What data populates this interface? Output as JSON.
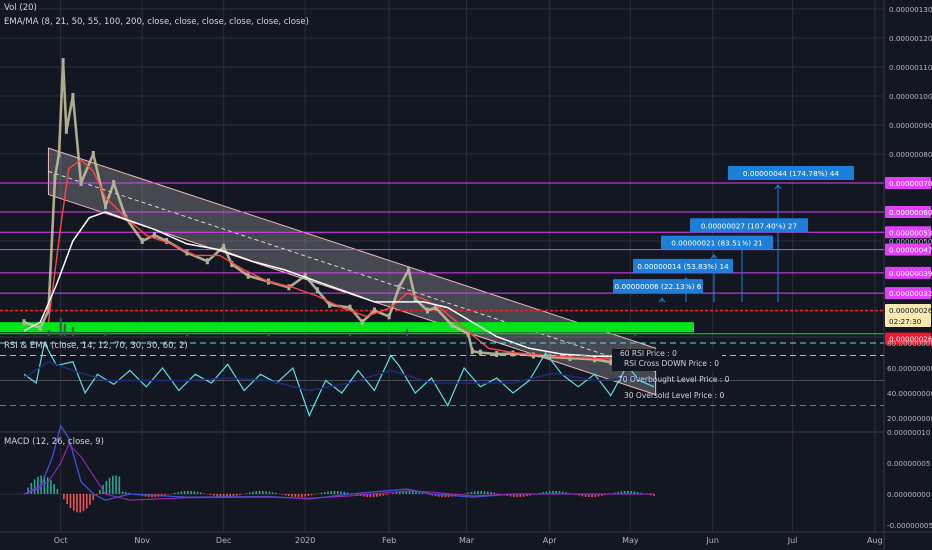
{
  "legend": {
    "vol": "Vol (20)",
    "ema": "EMA/MA (8, 21, 50, 55, 100, 200, close, close, close, close, close, close)",
    "rsi": "RSI & EMA (close, 14, 12, 70, 30, 50, 60, 2)",
    "macd": "MACD (12, 26, close, 9)"
  },
  "xaxis": {
    "labels": [
      {
        "t": 0.45,
        "text": "Oct"
      },
      {
        "t": 1.45,
        "text": "Nov"
      },
      {
        "t": 2.45,
        "text": "Dec"
      },
      {
        "t": 3.45,
        "text": "2020"
      },
      {
        "t": 4.48,
        "text": "Feb"
      },
      {
        "t": 5.43,
        "text": "Mar"
      },
      {
        "t": 6.45,
        "text": "Apr"
      },
      {
        "t": 7.44,
        "text": "May"
      },
      {
        "t": 8.45,
        "text": "Jun"
      },
      {
        "t": 9.43,
        "text": "Jul"
      },
      {
        "t": 10.44,
        "text": "Aug"
      }
    ]
  },
  "price_axis": {
    "ticks": [
      {
        "v": 130,
        "text": "0.00000130"
      },
      {
        "v": 120,
        "text": "0.00000120"
      },
      {
        "v": 110,
        "text": "0.00000110"
      },
      {
        "v": 100,
        "text": "0.00000100"
      },
      {
        "v": 90,
        "text": "0.00000090"
      },
      {
        "v": 80,
        "text": "0.00000080"
      },
      {
        "v": 50,
        "text": "0.00000050"
      }
    ],
    "badges": [
      {
        "v": 70,
        "text": "0.00000070",
        "color": "#e040fb",
        "fg": "#ffffff"
      },
      {
        "v": 60,
        "text": "0.00000060",
        "color": "#e040fb",
        "fg": "#ffffff"
      },
      {
        "v": 53,
        "text": "0.00000053",
        "color": "#e040fb",
        "fg": "#ffffff"
      },
      {
        "v": 47,
        "text": "0.00000047",
        "color": "#e040fb",
        "fg": "#ffffff"
      },
      {
        "v": 39,
        "text": "0.00000039",
        "color": "#e040fb",
        "fg": "#ffffff"
      },
      {
        "v": 32,
        "text": "0.00000032",
        "color": "#e040fb",
        "fg": "#ffffff"
      },
      {
        "v": 26.2,
        "text": "0.00000026",
        "color": "#f7e9b0",
        "fg": "#131722"
      },
      {
        "v": 22.4,
        "text": "02:27:30",
        "color": "#f7e9b0",
        "fg": "#131722"
      },
      {
        "v": 16.3,
        "text": "0.00000026",
        "color": "#f0162b",
        "fg": "#ffffff"
      }
    ]
  },
  "rsi_axis": {
    "ticks": [
      {
        "v": 80,
        "text": "80.00000000"
      },
      {
        "v": 60,
        "text": "60.00000000"
      },
      {
        "v": 40,
        "text": "40.00000000"
      },
      {
        "v": 20,
        "text": "20.00000000"
      }
    ],
    "info": [
      "60 RSI Price : 0",
      "RSI Cross DOWN Price : 0",
      "70 Overbought Level Price : 0",
      "30 Oversold Level Price : 0"
    ]
  },
  "macd_axis": {
    "ticks": [
      {
        "v": 10,
        "text": "0.00000010"
      },
      {
        "v": 5,
        "text": "0.00000005"
      },
      {
        "v": 0,
        "text": "0.00000000"
      },
      {
        "v": -5,
        "text": "-0.00000005"
      }
    ]
  },
  "targets": [
    {
      "v": 32,
      "text": "0.00000006 (22.13%) 6"
    },
    {
      "v": 39,
      "text": "0.00000014 (53.83%) 14"
    },
    {
      "v": 47,
      "text": "0.00000021 (83.51%) 21"
    },
    {
      "v": 53,
      "text": "0.00000027 (107.40%) 27"
    },
    {
      "v": 71,
      "text": "0.00000044 (174.78%) 44"
    }
  ],
  "levels": [
    {
      "v": 70,
      "color": "#e040fb"
    },
    {
      "v": 60,
      "color": "#e040fb"
    },
    {
      "v": 53,
      "color": "#e040fb"
    },
    {
      "v": 47,
      "color": "#e040fb"
    },
    {
      "v": 39,
      "color": "#e040fb"
    },
    {
      "v": 32,
      "color": "#e040fb"
    },
    {
      "v": 26,
      "color": "#ff1a1a"
    }
  ],
  "chart_data": {
    "type": "line",
    "title": "",
    "x_unit": "months since Sep 2019 (axis month labels)",
    "price_series": [
      [
        0.0,
        22
      ],
      [
        0.2,
        20
      ],
      [
        0.3,
        26
      ],
      [
        0.38,
        72
      ],
      [
        0.43,
        80
      ],
      [
        0.48,
        112
      ],
      [
        0.52,
        88
      ],
      [
        0.6,
        100
      ],
      [
        0.7,
        70
      ],
      [
        0.85,
        80
      ],
      [
        1.0,
        62
      ],
      [
        1.1,
        70
      ],
      [
        1.25,
        58
      ],
      [
        1.45,
        50
      ],
      [
        1.6,
        52
      ],
      [
        1.75,
        50
      ],
      [
        2.0,
        46
      ],
      [
        2.25,
        43
      ],
      [
        2.45,
        48
      ],
      [
        2.55,
        42
      ],
      [
        2.75,
        38
      ],
      [
        3.0,
        36
      ],
      [
        3.25,
        34
      ],
      [
        3.45,
        38
      ],
      [
        3.6,
        33
      ],
      [
        3.75,
        28
      ],
      [
        4.0,
        27
      ],
      [
        4.15,
        22
      ],
      [
        4.3,
        26
      ],
      [
        4.48,
        24
      ],
      [
        4.6,
        34
      ],
      [
        4.72,
        40
      ],
      [
        4.8,
        30
      ],
      [
        4.95,
        26
      ],
      [
        5.05,
        27
      ],
      [
        5.25,
        21
      ],
      [
        5.45,
        18
      ],
      [
        5.5,
        12
      ],
      [
        5.6,
        11.5
      ],
      [
        5.8,
        11
      ],
      [
        6.0,
        11.2
      ],
      [
        6.25,
        10.5
      ],
      [
        6.45,
        10
      ],
      [
        6.7,
        9.6
      ],
      [
        7.0,
        9.2
      ],
      [
        7.2,
        8.2
      ],
      [
        7.44,
        9.4
      ],
      [
        7.6,
        9.5
      ],
      [
        7.73,
        9.2
      ]
    ],
    "ema_red": [
      [
        0.3,
        22
      ],
      [
        0.45,
        55
      ],
      [
        0.55,
        75
      ],
      [
        0.7,
        78
      ],
      [
        0.85,
        74
      ],
      [
        1.0,
        65
      ],
      [
        1.25,
        58
      ],
      [
        1.5,
        52
      ],
      [
        1.8,
        49
      ],
      [
        2.1,
        45
      ],
      [
        2.4,
        45
      ],
      [
        2.7,
        40
      ],
      [
        3.0,
        36
      ],
      [
        3.3,
        34
      ],
      [
        3.6,
        31
      ],
      [
        3.9,
        27
      ],
      [
        4.2,
        24
      ],
      [
        4.5,
        27
      ],
      [
        4.7,
        32
      ],
      [
        4.9,
        30
      ],
      [
        5.1,
        27
      ],
      [
        5.4,
        20
      ],
      [
        5.7,
        13
      ],
      [
        6.0,
        11.5
      ],
      [
        6.5,
        10.3
      ],
      [
        7.0,
        9.5
      ],
      [
        7.5,
        9.3
      ],
      [
        7.73,
        9.3
      ]
    ],
    "ma_white": [
      [
        0.0,
        19
      ],
      [
        0.2,
        22
      ],
      [
        0.4,
        35
      ],
      [
        0.6,
        50
      ],
      [
        0.8,
        58
      ],
      [
        1.0,
        60
      ],
      [
        1.3,
        57
      ],
      [
        1.6,
        54
      ],
      [
        2.0,
        49
      ],
      [
        2.4,
        47
      ],
      [
        2.8,
        43
      ],
      [
        3.2,
        40
      ],
      [
        3.6,
        36
      ],
      [
        4.0,
        32
      ],
      [
        4.3,
        29
      ],
      [
        4.6,
        29
      ],
      [
        4.9,
        29
      ],
      [
        5.2,
        27
      ],
      [
        5.5,
        22
      ],
      [
        5.8,
        17
      ],
      [
        6.2,
        13
      ],
      [
        6.6,
        11
      ],
      [
        7.0,
        10.3
      ],
      [
        7.4,
        10
      ],
      [
        7.73,
        9.8
      ]
    ],
    "channel": {
      "upper": [
        [
          0.3,
          82
        ],
        [
          7.75,
          13
        ]
      ],
      "lower": [
        [
          0.3,
          66
        ],
        [
          7.75,
          -3
        ]
      ]
    },
    "volume": [
      [
        0.3,
        1.0
      ],
      [
        0.45,
        3.0
      ],
      [
        0.5,
        2.0
      ],
      [
        0.6,
        1.5
      ],
      [
        1.0,
        0.6
      ],
      [
        2.0,
        0.4
      ],
      [
        3.0,
        0.4
      ],
      [
        4.0,
        0.3
      ],
      [
        4.7,
        1.2
      ],
      [
        5.5,
        0.5
      ],
      [
        6.5,
        0.3
      ],
      [
        7.5,
        0.3
      ]
    ],
    "rsi": [
      [
        0.0,
        55
      ],
      [
        0.15,
        48
      ],
      [
        0.25,
        80
      ],
      [
        0.4,
        62
      ],
      [
        0.6,
        65
      ],
      [
        0.75,
        40
      ],
      [
        0.9,
        55
      ],
      [
        1.1,
        47
      ],
      [
        1.3,
        58
      ],
      [
        1.5,
        45
      ],
      [
        1.7,
        60
      ],
      [
        1.9,
        42
      ],
      [
        2.1,
        55
      ],
      [
        2.3,
        48
      ],
      [
        2.5,
        63
      ],
      [
        2.7,
        42
      ],
      [
        2.9,
        55
      ],
      [
        3.1,
        48
      ],
      [
        3.3,
        60
      ],
      [
        3.5,
        22
      ],
      [
        3.7,
        50
      ],
      [
        3.9,
        40
      ],
      [
        4.1,
        58
      ],
      [
        4.3,
        42
      ],
      [
        4.5,
        70
      ],
      [
        4.6,
        62
      ],
      [
        4.8,
        40
      ],
      [
        5.0,
        52
      ],
      [
        5.2,
        30
      ],
      [
        5.4,
        60
      ],
      [
        5.6,
        45
      ],
      [
        5.8,
        52
      ],
      [
        6.0,
        40
      ],
      [
        6.2,
        50
      ],
      [
        6.4,
        72
      ],
      [
        6.6,
        55
      ],
      [
        6.8,
        45
      ],
      [
        7.0,
        55
      ],
      [
        7.2,
        38
      ],
      [
        7.4,
        62
      ],
      [
        7.55,
        50
      ],
      [
        7.73,
        45
      ]
    ],
    "rsi_ema": [
      [
        0.0,
        52
      ],
      [
        0.3,
        65
      ],
      [
        0.6,
        58
      ],
      [
        1.0,
        50
      ],
      [
        1.5,
        50
      ],
      [
        2.0,
        50
      ],
      [
        2.5,
        52
      ],
      [
        3.0,
        50
      ],
      [
        3.5,
        42
      ],
      [
        4.0,
        48
      ],
      [
        4.5,
        58
      ],
      [
        5.0,
        48
      ],
      [
        5.5,
        48
      ],
      [
        6.0,
        48
      ],
      [
        6.5,
        56
      ],
      [
        7.0,
        50
      ],
      [
        7.5,
        52
      ],
      [
        7.73,
        48
      ]
    ],
    "macd": [
      [
        0.0,
        0
      ],
      [
        0.2,
        1
      ],
      [
        0.35,
        6
      ],
      [
        0.45,
        11
      ],
      [
        0.55,
        9
      ],
      [
        0.7,
        2
      ],
      [
        0.85,
        0
      ],
      [
        1.0,
        -1
      ],
      [
        1.3,
        0
      ],
      [
        2.0,
        -0.5
      ],
      [
        3.0,
        -0.4
      ],
      [
        3.5,
        -0.8
      ],
      [
        4.0,
        0
      ],
      [
        4.7,
        0.8
      ],
      [
        5.0,
        0
      ],
      [
        5.5,
        -0.5
      ],
      [
        6.0,
        0
      ],
      [
        7.0,
        0
      ],
      [
        7.73,
        0
      ]
    ],
    "macd_signal": [
      [
        0.0,
        0
      ],
      [
        0.3,
        2
      ],
      [
        0.45,
        5
      ],
      [
        0.55,
        8
      ],
      [
        0.7,
        6
      ],
      [
        0.85,
        3
      ],
      [
        1.0,
        0
      ],
      [
        1.3,
        -1
      ],
      [
        2.0,
        -0.6
      ],
      [
        3.0,
        -0.5
      ],
      [
        3.5,
        -0.7
      ],
      [
        4.0,
        -0.3
      ],
      [
        4.7,
        0.5
      ],
      [
        5.0,
        0.3
      ],
      [
        5.5,
        -0.3
      ],
      [
        6.0,
        0
      ],
      [
        7.0,
        0
      ],
      [
        7.73,
        0
      ]
    ]
  },
  "colors": {
    "bg": "#131722",
    "grid": "#2a2e39",
    "candle_up": "#b0b0a0",
    "ema_red": "#ff4444",
    "ma_white": "#ffffff",
    "channel": "#f2b8b8",
    "support_green": "#00e61a",
    "rsi_cyan": "#5ce0e6",
    "rsi_ema": "#1e2a7a",
    "macd_blue": "#3f51d6",
    "target_box": "#1e7fd9"
  }
}
